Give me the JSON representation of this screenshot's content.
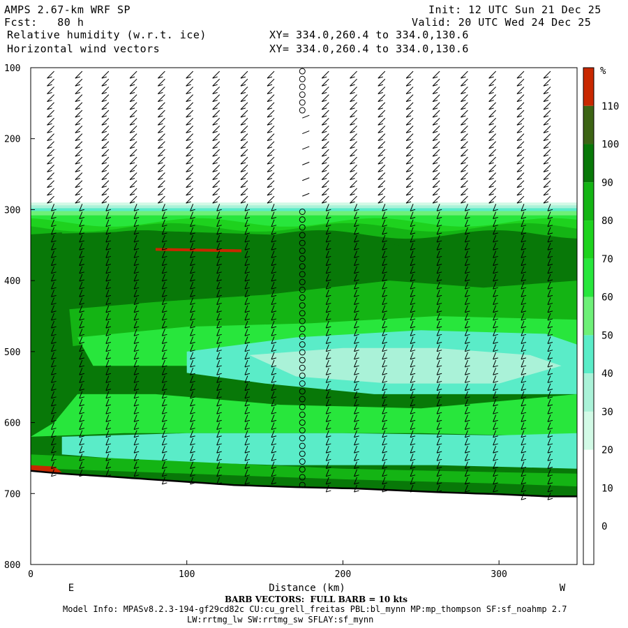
{
  "header": {
    "model_title": "AMPS 2.67-km WRF SP",
    "forecast": "Fcst:   80 h",
    "field": "Relative humidity (w.r.t. ice)",
    "vectors": "Horizontal wind vectors",
    "init": "Init: 12 UTC Sun 21 Dec 25",
    "valid": "Valid: 20 UTC Wed 24 Dec 25",
    "xy_field": "XY= 334.0,260.4 to 334.0,130.6",
    "xy_vectors": "XY= 334.0,260.4 to 334.0,130.6"
  },
  "footer": {
    "barb_note": "BARB VECTORS:  FULL BARB = 10 kts",
    "model_info_1": "Model Info: MPASv8.2.3-194-gf29cd82c CU:cu_grell_freitas PBL:bl_mynn MP:mp_thompson SF:sf_noahmp 2.7",
    "model_info_2": "LW:rrtmg_lw SW:rrtmg_sw SFLAY:sf_mynn"
  },
  "colors": {
    "c30": "#d2fae6",
    "c40": "#aaf2d8",
    "c50": "#5aecc8",
    "c60": "#6ef078",
    "c70": "#28e63c",
    "c80": "#1ed21e",
    "c90": "#14b414",
    "c100": "#087808",
    "c110": "#3c6414",
    "c_over": "#c82800",
    "terrain": "#000000"
  },
  "chart_data": {
    "type": "contour",
    "title": "Relative humidity (w.r.t. ice)",
    "xlabel": "Distance (km)",
    "ylabel": "",
    "x_range": [
      0,
      350
    ],
    "y_range": [
      100,
      800
    ],
    "y_direction": "reversed",
    "x_ticks": [
      0,
      100,
      200,
      300
    ],
    "x_tick_labels": [
      "0",
      "100",
      "200",
      "300"
    ],
    "y_ticks": [
      100,
      200,
      300,
      400,
      500,
      600,
      700,
      800
    ],
    "y_tick_labels": [
      "100",
      "200",
      "300",
      "400",
      "500",
      "600",
      "700",
      "800"
    ],
    "x_end_labels": {
      "left": "E",
      "right": "W"
    },
    "colorbar": {
      "unit": "%",
      "levels": [
        0,
        10,
        20,
        30,
        40,
        50,
        60,
        70,
        80,
        90,
        100,
        110
      ],
      "colors": [
        "#ffffff",
        "#ffffff",
        "#ffffff",
        "#d2fae6",
        "#aaf2d8",
        "#5aecc8",
        "#6ef078",
        "#28e63c",
        "#1ed21e",
        "#14b414",
        "#087808",
        "#3c6414",
        "#c82800"
      ]
    },
    "terrain_surface": {
      "x": [
        0,
        20,
        50,
        90,
        130,
        170,
        210,
        260,
        300,
        330,
        350
      ],
      "p": [
        668,
        672,
        676,
        682,
        688,
        691,
        693,
        698,
        701,
        704,
        704
      ]
    },
    "rh_layers": [
      {
        "level": 30,
        "p_top": 290
      },
      {
        "level": 40,
        "p_top": 294
      },
      {
        "level": 50,
        "p_top": 298
      },
      {
        "level": 60,
        "p_top": 302
      },
      {
        "level": 70,
        "p_top": 308
      },
      {
        "level": 80,
        "p_top": 318
      },
      {
        "level": 90,
        "p_top": 325
      },
      {
        "level": 100,
        "p_top": 335
      }
    ],
    "vector_columns_km": [
      15,
      33,
      50,
      68,
      86,
      104,
      121,
      139,
      156,
      174,
      191,
      209,
      227,
      245,
      262,
      280,
      298,
      316,
      333
    ]
  }
}
